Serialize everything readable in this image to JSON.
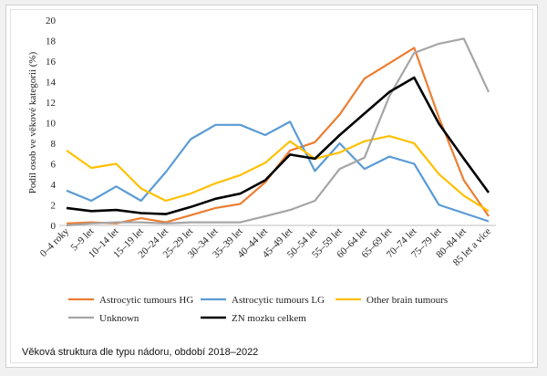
{
  "caption": "Věková struktura dle typu nádoru, období 2018–2022",
  "chart_data": {
    "type": "line",
    "title": "",
    "xlabel": "",
    "ylabel": "Podíl osob ve věkové kategorii (%)",
    "ylim": [
      0,
      20
    ],
    "yticks": [
      0,
      2,
      4,
      6,
      8,
      10,
      12,
      14,
      16,
      18,
      20
    ],
    "grid": false,
    "legend": "bottom",
    "categories": [
      "0–4 roky",
      "5–9 let",
      "10–14 let",
      "15–19 let",
      "20–24 let",
      "25–29 let",
      "30–34 let",
      "35–39 let",
      "40–44 let",
      "45–49 let",
      "50–54 let",
      "55–59 let",
      "60–64 let",
      "65–69 let",
      "70–74 let",
      "75–79 let",
      "80–84 let",
      "85 let a více"
    ],
    "series": [
      {
        "name": "Astrocytic tumours HG",
        "color": "#ed7d31",
        "values": [
          0.2,
          0.3,
          0.2,
          0.7,
          0.3,
          1.0,
          1.7,
          2.1,
          4.2,
          7.3,
          8.1,
          10.8,
          14.3,
          15.8,
          17.3,
          10.5,
          4.4,
          0.9
        ]
      },
      {
        "name": "Astrocytic tumours LG",
        "color": "#5b9bd5",
        "values": [
          3.4,
          2.4,
          3.8,
          2.4,
          5.2,
          8.4,
          9.8,
          9.8,
          8.8,
          10.1,
          5.3,
          8.0,
          5.5,
          6.7,
          6.0,
          2.0,
          1.2,
          0.4
        ]
      },
      {
        "name": "Other brain tumours",
        "color": "#ffc000",
        "values": [
          7.3,
          5.6,
          6.0,
          3.6,
          2.4,
          3.1,
          4.1,
          4.9,
          6.1,
          8.2,
          6.5,
          7.1,
          8.2,
          8.7,
          8.0,
          5.0,
          2.9,
          1.4
        ]
      },
      {
        "name": "Unknown",
        "color": "#a5a5a5",
        "values": [
          0.0,
          0.2,
          0.3,
          0.3,
          0.2,
          0.3,
          0.3,
          0.3,
          0.9,
          1.5,
          2.4,
          5.5,
          6.6,
          12.6,
          16.8,
          17.7,
          18.2,
          13.0
        ]
      },
      {
        "name": "ZN mozku celkem",
        "color": "#000000",
        "values": [
          1.7,
          1.4,
          1.5,
          1.2,
          1.1,
          1.8,
          2.6,
          3.1,
          4.4,
          6.9,
          6.5,
          8.8,
          10.9,
          13.0,
          14.4,
          9.9,
          6.5,
          3.2
        ]
      }
    ]
  }
}
